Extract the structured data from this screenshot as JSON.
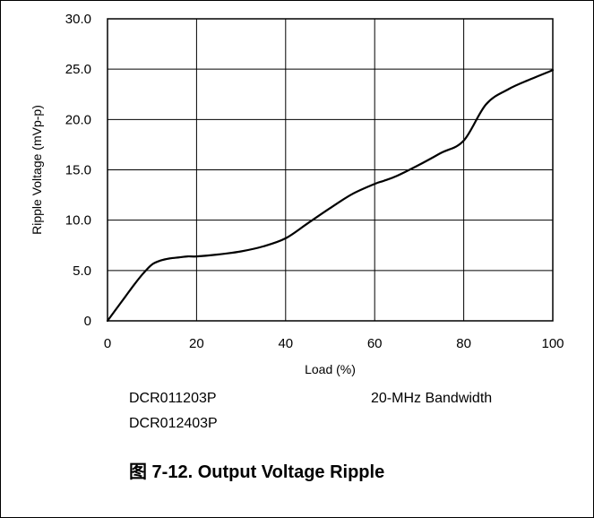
{
  "chart_data": {
    "type": "line",
    "title": "",
    "xlabel": "Load (%)",
    "ylabel": "Ripple Voltage (mVp-p)",
    "xlim": [
      0,
      100
    ],
    "ylim": [
      0,
      30
    ],
    "x_ticks": [
      "0",
      "20",
      "40",
      "60",
      "80",
      "100"
    ],
    "y_ticks": [
      "0",
      "5.0",
      "10.0",
      "15.0",
      "20.0",
      "25.0",
      "30.0"
    ],
    "grid": true,
    "series": [
      {
        "x": [
          0,
          2,
          4,
          6,
          8,
          10,
          12,
          14,
          16,
          18,
          20,
          25,
          30,
          35,
          40,
          45,
          50,
          55,
          60,
          62,
          65,
          70,
          75,
          80,
          85,
          90,
          95,
          100
        ],
        "y": [
          0,
          1.2,
          2.4,
          3.6,
          4.7,
          5.6,
          6.0,
          6.2,
          6.3,
          6.4,
          6.4,
          6.6,
          6.9,
          7.4,
          8.2,
          9.7,
          11.2,
          12.6,
          13.6,
          13.9,
          14.4,
          15.5,
          16.7,
          17.9,
          21.5,
          23.0,
          24.0,
          24.9
        ]
      }
    ]
  },
  "notes": {
    "device_line1": "DCR011203P",
    "device_line2": "DCR012403P",
    "bandwidth": "20-MHz Bandwidth"
  },
  "caption": "图 7-12. Output Voltage Ripple"
}
